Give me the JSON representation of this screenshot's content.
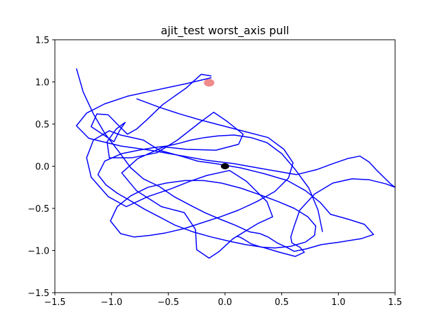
{
  "chart_data": {
    "type": "line",
    "title": "ajit_test worst_axis pull",
    "xlabel": "",
    "ylabel": "",
    "xlim": [
      -1.5,
      1.5
    ],
    "ylim": [
      -1.5,
      1.5
    ],
    "xticks": [
      -1.5,
      -1.0,
      -0.5,
      0.0,
      0.5,
      1.0,
      1.5
    ],
    "yticks": [
      -1.5,
      -1.0,
      -0.5,
      0.0,
      0.5,
      1.0,
      1.5
    ],
    "xtick_labels": [
      "−1.5",
      "−1.0",
      "−0.5",
      "0.0",
      "0.5",
      "1.0",
      "1.5"
    ],
    "ytick_labels": [
      "−1.5",
      "−1.0",
      "−0.5",
      "0.0",
      "0.5",
      "1.0",
      "1.5"
    ],
    "grid": false,
    "legend": "none",
    "colors": {
      "path": "#0000ff",
      "target": "#f08080",
      "origin": "#000000"
    },
    "series": [
      {
        "values_x": [
          -0.12,
          -0.21,
          -0.34,
          -0.55,
          -0.69,
          -0.78,
          -0.86,
          -0.95,
          -1.03,
          -1.13,
          -1.18,
          -0.98,
          -0.93,
          -0.88,
          -0.96,
          -1.04,
          -1.02,
          -0.82,
          -0.6,
          -0.42,
          -0.22,
          -0.1,
          0.02,
          0.16,
          0.12,
          -0.08,
          -0.34,
          -0.54,
          -0.77,
          -0.91,
          -0.78,
          -0.56,
          -0.36,
          -0.26,
          -0.25,
          -0.14,
          -0.05,
          0.07,
          0.29,
          0.42,
          0.37,
          0.19,
          0.04,
          -0.16,
          -0.31,
          -0.48,
          -0.68,
          -0.87,
          -1.03,
          -1.18,
          -1.22,
          -1.16,
          -1.02,
          -0.92,
          -0.72,
          -0.58,
          -0.39,
          -0.24,
          -0.08,
          0.14,
          0.35,
          0.55,
          0.71,
          0.84,
          0.93,
          1.09,
          1.23,
          1.31,
          1.2,
          1.01,
          0.85,
          0.72,
          0.61,
          0.54,
          0.46,
          0.38,
          0.31,
          0.22,
          0.09,
          -0.04,
          -0.18,
          -0.31,
          -0.45,
          -0.58,
          -0.72,
          -0.83,
          -0.94,
          -1.06,
          -1.16,
          -1.25,
          -1.31
        ],
        "values_y": [
          1.07,
          1.09,
          0.93,
          0.73,
          0.55,
          0.44,
          0.38,
          0.5,
          0.61,
          0.62,
          0.47,
          0.29,
          0.42,
          0.52,
          0.44,
          0.29,
          0.1,
          0.1,
          0.16,
          0.31,
          0.52,
          0.64,
          0.53,
          0.38,
          0.26,
          0.19,
          0.2,
          0.23,
          0.09,
          -0.08,
          -0.29,
          -0.48,
          -0.55,
          -0.75,
          -0.99,
          -1.09,
          -1.01,
          -0.86,
          -0.68,
          -0.6,
          -0.42,
          -0.18,
          -0.05,
          -0.11,
          -0.18,
          -0.27,
          -0.36,
          -0.48,
          -0.36,
          -0.13,
          0.1,
          0.31,
          0.42,
          0.37,
          0.31,
          0.19,
          0.12,
          0.06,
          0.03,
          -0.02,
          -0.09,
          -0.17,
          -0.29,
          -0.43,
          -0.57,
          -0.63,
          -0.69,
          -0.81,
          -0.86,
          -0.9,
          -0.93,
          -0.98,
          -1.01,
          -0.96,
          -0.91,
          -0.84,
          -0.8,
          -0.78,
          -0.7,
          -0.63,
          -0.55,
          -0.46,
          -0.36,
          -0.24,
          -0.15,
          -0.02,
          0.18,
          0.39,
          0.62,
          0.88,
          1.16
        ]
      },
      {
        "values_x": [
          -0.12,
          -0.34,
          -0.62,
          -0.86,
          -1.06,
          -1.22,
          -1.31,
          -1.2,
          -0.92,
          -0.66,
          -0.41,
          -0.16,
          0.08,
          0.29,
          0.46,
          0.63,
          0.81,
          0.95,
          1.08,
          1.19,
          1.27,
          1.34,
          1.4,
          1.46,
          1.5,
          1.42,
          1.27,
          1.12,
          0.95,
          0.79,
          0.66,
          0.61,
          0.58,
          0.59,
          0.66,
          0.7,
          0.62,
          0.48,
          0.33,
          0.18,
          0.04,
          -0.12,
          -0.28,
          -0.44,
          -0.58,
          -0.71,
          -0.82,
          -0.95,
          -1.05,
          -1.12,
          -1.06,
          -0.91,
          -0.76,
          -0.63,
          -0.51,
          -0.41,
          -0.3,
          -0.18,
          -0.06,
          0.08,
          0.23,
          0.37,
          0.5,
          0.62,
          0.74,
          0.82,
          0.86
        ],
        "values_y": [
          1.05,
          0.98,
          0.9,
          0.83,
          0.74,
          0.63,
          0.48,
          0.33,
          0.24,
          0.19,
          0.13,
          0.07,
          0.03,
          -0.02,
          -0.06,
          -0.1,
          -0.04,
          0.03,
          0.09,
          0.12,
          0.05,
          -0.05,
          -0.13,
          -0.21,
          -0.25,
          -0.21,
          -0.16,
          -0.15,
          -0.2,
          -0.33,
          -0.52,
          -0.71,
          -0.84,
          -0.91,
          -0.96,
          -1.02,
          -1.07,
          -1.02,
          -0.96,
          -0.93,
          -0.89,
          -0.84,
          -0.78,
          -0.7,
          -0.6,
          -0.51,
          -0.42,
          -0.32,
          -0.22,
          -0.1,
          0.06,
          0.15,
          0.19,
          0.22,
          0.24,
          0.27,
          0.31,
          0.34,
          0.36,
          0.37,
          0.34,
          0.28,
          0.15,
          -0.04,
          -0.26,
          -0.52,
          -0.78
        ]
      },
      {
        "values_x": [
          -0.78,
          -0.58,
          -0.4,
          -0.22,
          -0.02,
          0.18,
          0.38,
          0.52,
          0.6,
          0.56,
          0.44,
          0.28,
          0.12,
          -0.04,
          -0.2,
          -0.36,
          -0.52,
          -0.66,
          -0.8,
          -0.92,
          -1.01,
          -0.95,
          -0.83,
          -0.68,
          -0.52,
          -0.35,
          -0.19,
          -0.03,
          0.14,
          0.31,
          0.47,
          0.61,
          0.73,
          0.8,
          0.79,
          0.71,
          0.58,
          0.44,
          0.32,
          0.23,
          0.17,
          0.13,
          0.1
        ],
        "values_y": [
          0.8,
          0.7,
          0.62,
          0.55,
          0.48,
          0.41,
          0.34,
          0.2,
          0.04,
          -0.14,
          -0.3,
          -0.42,
          -0.52,
          -0.6,
          -0.67,
          -0.74,
          -0.79,
          -0.82,
          -0.84,
          -0.8,
          -0.65,
          -0.48,
          -0.35,
          -0.25,
          -0.2,
          -0.17,
          -0.17,
          -0.2,
          -0.26,
          -0.34,
          -0.42,
          -0.5,
          -0.6,
          -0.71,
          -0.82,
          -0.9,
          -0.95,
          -0.97,
          -0.96,
          -0.92,
          -0.87,
          -0.84,
          -0.83
        ]
      }
    ],
    "target_point": {
      "x": -0.14,
      "y": 0.99
    },
    "origin_point": {
      "x": 0.0,
      "y": 0.0
    }
  }
}
